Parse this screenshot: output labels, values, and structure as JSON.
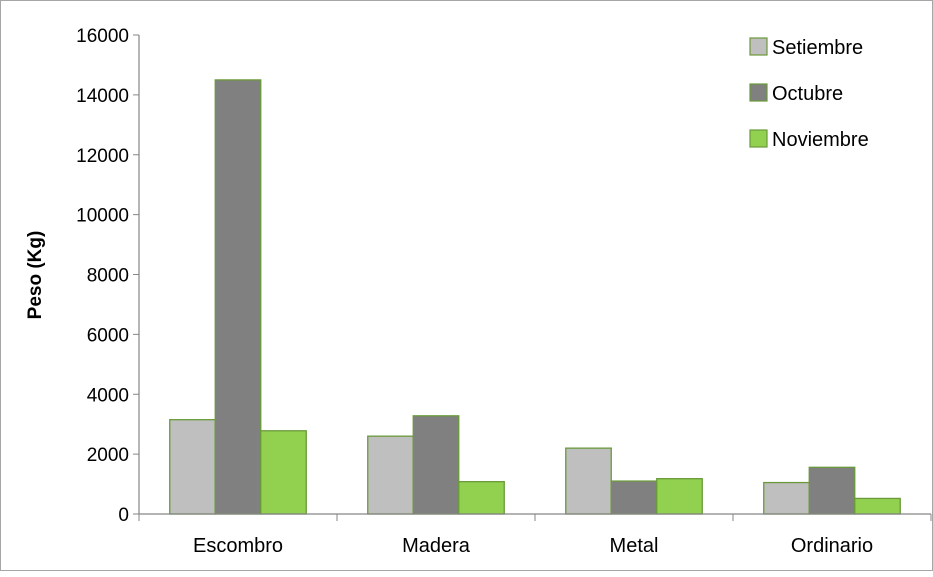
{
  "chart_data": {
    "type": "bar",
    "title": "",
    "xlabel": "",
    "ylabel": "Peso (Kg)",
    "ylim": [
      0,
      16000
    ],
    "yticks": [
      0,
      2000,
      4000,
      6000,
      8000,
      10000,
      12000,
      14000,
      16000
    ],
    "grid": false,
    "legend_position": "top-right",
    "categories": [
      "Escombro",
      "Madera",
      "Metal",
      "Ordinario"
    ],
    "series": [
      {
        "name": "Setiembre",
        "color": "#bfbfbf",
        "values": [
          3150,
          2600,
          2200,
          1050
        ]
      },
      {
        "name": "Octubre",
        "color": "#808080",
        "values": [
          14500,
          3280,
          1100,
          1560
        ]
      },
      {
        "name": "Noviembre",
        "color": "#92d050",
        "values": [
          2780,
          1080,
          1180,
          520
        ]
      }
    ],
    "bar_border_color": "#6a9a3a"
  }
}
